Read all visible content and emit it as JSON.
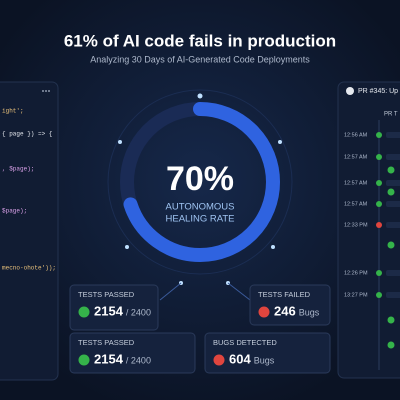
{
  "header": {
    "title": "61% of AI code fails in production",
    "subtitle": "Analyzing 30 Days of AI-Generated Code Deployments"
  },
  "gauge": {
    "values": [
      70
    ],
    "value_labels": [
      "70%"
    ],
    "range": [
      0,
      100
    ],
    "label_lines": [
      "AUTONOMOUS",
      "HEALING RATE"
    ]
  },
  "cards": [
    {
      "label": "TESTS PASSED",
      "value": "2154",
      "unit": "/ 2400"
    },
    {
      "label": "TESTS FAILED",
      "value": "246",
      "unit": "Bugs"
    },
    {
      "label": "TESTS PASSED",
      "value": "2154",
      "unit": "/ 2400"
    },
    {
      "label": "BUGS DETECTED",
      "value": "604",
      "unit": "Bugs"
    }
  ],
  "code_panel": {
    "lines": [
      "ight';",
      "{ page }) => {",
      ", $page);",
      "$page);",
      "mecno-ohote'));"
    ]
  },
  "pr_panel": {
    "title": "PR #345: Up",
    "subtitle": "PR T",
    "times": [
      "12:56 AM",
      "12:57 AM",
      "12:57 AM",
      "12:57 AM",
      "12:33 PM",
      "12:26 PM",
      "13:27 PM"
    ]
  }
}
